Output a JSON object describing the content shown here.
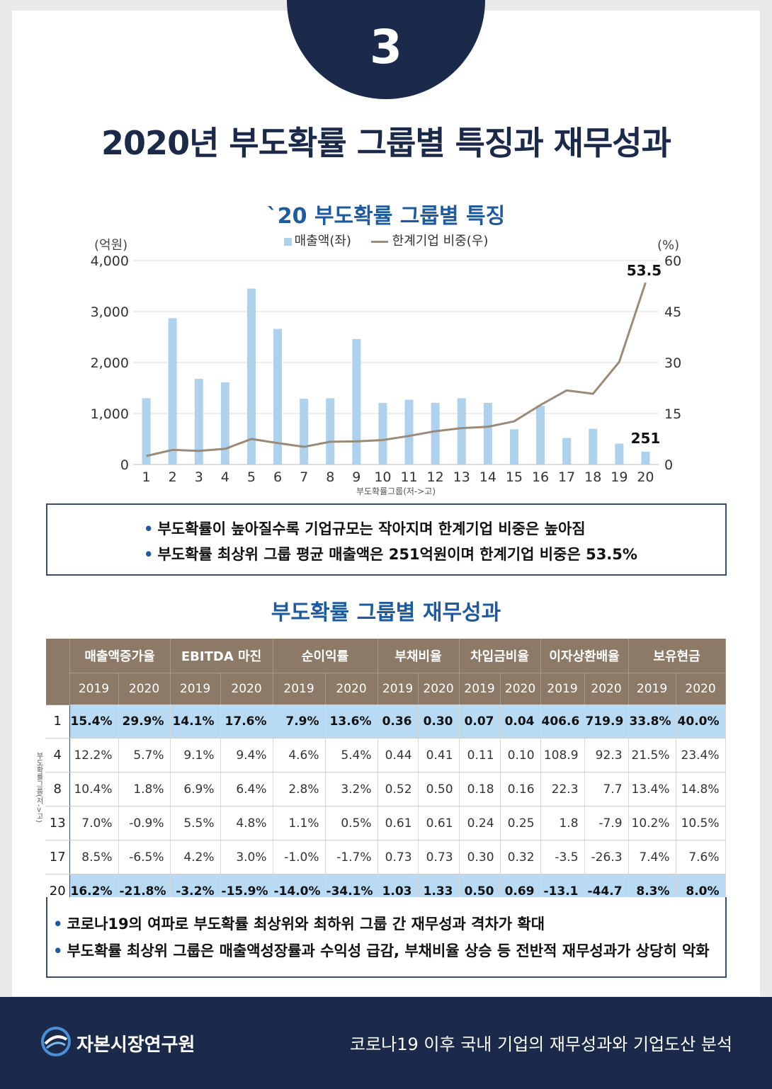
{
  "badge": "3",
  "title": "2020년 부도확률 그룹별 특징과 재무성과",
  "chart_section_title": "`20 부도확률 그룹별 특징",
  "chart_data": {
    "type": "bar",
    "categories": [
      "1",
      "2",
      "3",
      "4",
      "5",
      "6",
      "7",
      "8",
      "9",
      "10",
      "11",
      "12",
      "13",
      "14",
      "15",
      "16",
      "17",
      "18",
      "19",
      "20"
    ],
    "series": [
      {
        "name": "매출액(좌)",
        "type": "bar",
        "axis": "left",
        "values": [
          1300,
          2870,
          1680,
          1610,
          3450,
          2660,
          1290,
          1300,
          2460,
          1210,
          1270,
          1210,
          1300,
          1210,
          690,
          1150,
          520,
          700,
          410,
          251
        ]
      },
      {
        "name": "한계기업 비중(우)",
        "type": "line",
        "axis": "right",
        "values": [
          2.5,
          4.3,
          4.0,
          4.6,
          7.5,
          6.3,
          5.2,
          6.7,
          6.8,
          7.2,
          8.4,
          9.8,
          10.7,
          11.1,
          12.7,
          17.5,
          21.8,
          20.8,
          30.2,
          53.5
        ]
      }
    ],
    "ylabel_left": "(억원)",
    "ylabel_right": "(%)",
    "xlabel": "부도확률그룹(저->고)",
    "ylim_left": [
      0,
      4000
    ],
    "ylim_right": [
      0,
      60
    ],
    "yticks_left": [
      "0",
      "1,000",
      "2,000",
      "3,000",
      "4,000"
    ],
    "yticks_right": [
      "0",
      "15",
      "30",
      "45",
      "60"
    ],
    "annotations": [
      {
        "series": 1,
        "index": 19,
        "text": "53.5"
      },
      {
        "series": 0,
        "index": 19,
        "text": "251"
      }
    ],
    "grid": true,
    "legend": "top-center",
    "colors": {
      "bar": "#aed1ee",
      "line": "#9a8a78",
      "grid": "#dddddd"
    }
  },
  "legend": {
    "bar": "매출액(좌)",
    "line": "한계기업 비중(우)"
  },
  "summary1": [
    "부도확률이 높아질수록 기업규모는 작아지며 한계기업 비중은 높아짐",
    "부도확률 최상위 그룹 평균 매출액은 251억원이며 한계기업 비중은 53.5%"
  ],
  "table_section_title": "부도확률 그룹별 재무성과",
  "table": {
    "groups": [
      "매출액증가율",
      "EBITDA 마진",
      "순이익률",
      "부채비율",
      "차입금비율",
      "이자상환배율",
      "보유현금"
    ],
    "years": [
      "2019",
      "2020"
    ],
    "row_axis_label": "부도확률그룹(저->고)",
    "rows": [
      {
        "group": "1",
        "highlight": true,
        "values": [
          "15.4%",
          "29.9%",
          "14.1%",
          "17.6%",
          "7.9%",
          "13.6%",
          "0.36",
          "0.30",
          "0.07",
          "0.04",
          "406.6",
          "719.9",
          "33.8%",
          "40.0%"
        ]
      },
      {
        "group": "4",
        "highlight": false,
        "values": [
          "12.2%",
          "5.7%",
          "9.1%",
          "9.4%",
          "4.6%",
          "5.4%",
          "0.44",
          "0.41",
          "0.11",
          "0.10",
          "108.9",
          "92.3",
          "21.5%",
          "23.4%"
        ]
      },
      {
        "group": "8",
        "highlight": false,
        "values": [
          "10.4%",
          "1.8%",
          "6.9%",
          "6.4%",
          "2.8%",
          "3.2%",
          "0.52",
          "0.50",
          "0.18",
          "0.16",
          "22.3",
          "7.7",
          "13.4%",
          "14.8%"
        ]
      },
      {
        "group": "13",
        "highlight": false,
        "values": [
          "7.0%",
          "-0.9%",
          "5.5%",
          "4.8%",
          "1.1%",
          "0.5%",
          "0.61",
          "0.61",
          "0.24",
          "0.25",
          "1.8",
          "-7.9",
          "10.2%",
          "10.5%"
        ]
      },
      {
        "group": "17",
        "highlight": false,
        "values": [
          "8.5%",
          "-6.5%",
          "4.2%",
          "3.0%",
          "-1.0%",
          "-1.7%",
          "0.73",
          "0.73",
          "0.30",
          "0.32",
          "-3.5",
          "-26.3",
          "7.4%",
          "7.6%"
        ]
      },
      {
        "group": "20",
        "highlight": true,
        "values": [
          "16.2%",
          "-21.8%",
          "-3.2%",
          "-15.9%",
          "-14.0%",
          "-34.1%",
          "1.03",
          "1.33",
          "0.50",
          "0.69",
          "-13.1",
          "-44.7",
          "8.3%",
          "8.0%"
        ]
      }
    ]
  },
  "summary2": [
    "코로나19의 여파로 부도확률 최상위와 최하위 그룹 간 재무성과 격차가 확대",
    "부도확률 최상위 그룹은 매출액성장률과 수익성 급감, 부채비율 상승 등 전반적 재무성과가 상당히 악화"
  ],
  "footer": {
    "org": "자본시장연구원",
    "report": "코로나19 이후 국내 기업의 재무성과와 기업도산 분석"
  }
}
